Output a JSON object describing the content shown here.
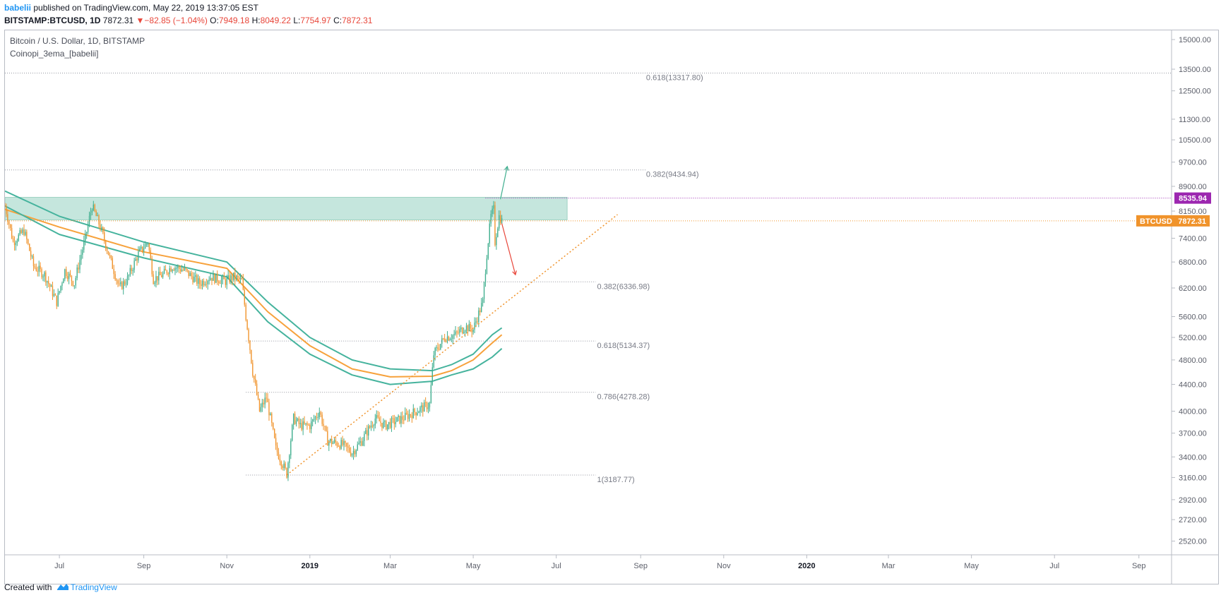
{
  "header": {
    "author": "babelii",
    "published_text": " published on TradingView.com, May 22, 2019 13:37:05 EST",
    "symbol": "BITSTAMP:BTCUSD, 1D",
    "last": "7872.31",
    "change": "−82.85 (−1.04%)",
    "open_label": "O:",
    "open_value": "7949.18",
    "high_label": "H:",
    "high_value": "8049.22",
    "low_label": "L:",
    "low_value": "7754.97",
    "close_label": "C:",
    "close_value": "7872.31"
  },
  "legend": {
    "title": "Bitcoin / U.S. Dollar, 1D, BITSTAMP",
    "indicator": "Coinopi_3ema_[babelii]"
  },
  "footer": {
    "created_with": "Created with",
    "brand": "TradingView"
  },
  "colors": {
    "up_candle": "#3fae8e",
    "down_candle": "#f0932b",
    "ema_teal": "#45b39d",
    "ema_orange": "#f7a23c",
    "zone_fill": "#b2ddd1",
    "purple": "#9c27b0",
    "badge_orange": "#f0932b",
    "up_arrow": "#3fae8e",
    "down_arrow": "#e8463a"
  },
  "chart_data": {
    "type": "candlestick",
    "title": "Bitcoin / U.S. Dollar, 1D, BITSTAMP",
    "y_scale": "log",
    "ylim": [
      2400,
      15500
    ],
    "y_ticks": [
      2520,
      2720,
      2920,
      3160,
      3400,
      3700,
      4000,
      4400,
      4800,
      5200,
      5600,
      6200,
      6800,
      7400,
      8150,
      8900,
      9700,
      10500,
      11300,
      12500,
      13500,
      15000
    ],
    "y_tick_labels": [
      "2520.00",
      "2720.00",
      "2920.00",
      "3160.00",
      "3400.00",
      "3700.00",
      "4000.00",
      "4400.00",
      "4800.00",
      "5200.00",
      "5600.00",
      "6200.00",
      "6800.00",
      "7400.00",
      "8150.00",
      "8900.00",
      "9700.00",
      "10500.00",
      "11300.00",
      "12500.00",
      "13500.00",
      "15000.00"
    ],
    "x_domain": [
      "2018-05-22",
      "2020-09-25"
    ],
    "x_ticks": [
      {
        "date": "2018-07-01",
        "label": "Jul",
        "bold": false
      },
      {
        "date": "2018-09-01",
        "label": "Sep",
        "bold": false
      },
      {
        "date": "2018-11-01",
        "label": "Nov",
        "bold": false
      },
      {
        "date": "2019-01-01",
        "label": "2019",
        "bold": true
      },
      {
        "date": "2019-03-01",
        "label": "Mar",
        "bold": false
      },
      {
        "date": "2019-05-01",
        "label": "May",
        "bold": false
      },
      {
        "date": "2019-07-01",
        "label": "Jul",
        "bold": false
      },
      {
        "date": "2019-09-01",
        "label": "Sep",
        "bold": false
      },
      {
        "date": "2019-11-01",
        "label": "Nov",
        "bold": false
      },
      {
        "date": "2020-01-01",
        "label": "2020",
        "bold": true
      },
      {
        "date": "2020-03-01",
        "label": "Mar",
        "bold": false
      },
      {
        "date": "2020-05-01",
        "label": "May",
        "bold": false
      },
      {
        "date": "2020-07-01",
        "label": "Jul",
        "bold": false
      },
      {
        "date": "2020-09-01",
        "label": "Sep",
        "bold": false
      }
    ],
    "price_path": [
      [
        "2018-05-22",
        8300
      ],
      [
        "2018-05-28",
        7300
      ],
      [
        "2018-06-05",
        7600
      ],
      [
        "2018-06-12",
        6700
      ],
      [
        "2018-06-20",
        6500
      ],
      [
        "2018-06-29",
        5900
      ],
      [
        "2018-07-05",
        6600
      ],
      [
        "2018-07-12",
        6300
      ],
      [
        "2018-07-20",
        7400
      ],
      [
        "2018-07-25",
        8300
      ],
      [
        "2018-07-31",
        7700
      ],
      [
        "2018-08-07",
        6900
      ],
      [
        "2018-08-14",
        6200
      ],
      [
        "2018-08-20",
        6400
      ],
      [
        "2018-08-28",
        7000
      ],
      [
        "2018-09-04",
        7300
      ],
      [
        "2018-09-08",
        6400
      ],
      [
        "2018-09-15",
        6500
      ],
      [
        "2018-09-22",
        6700
      ],
      [
        "2018-10-01",
        6600
      ],
      [
        "2018-10-12",
        6300
      ],
      [
        "2018-10-20",
        6450
      ],
      [
        "2018-10-31",
        6350
      ],
      [
        "2018-11-06",
        6450
      ],
      [
        "2018-11-12",
        6350
      ],
      [
        "2018-11-15",
        5600
      ],
      [
        "2018-11-20",
        4600
      ],
      [
        "2018-11-25",
        4000
      ],
      [
        "2018-11-30",
        4200
      ],
      [
        "2018-12-07",
        3500
      ],
      [
        "2018-12-15",
        3200
      ],
      [
        "2018-12-20",
        3900
      ],
      [
        "2018-12-25",
        3800
      ],
      [
        "2019-01-01",
        3800
      ],
      [
        "2019-01-08",
        4000
      ],
      [
        "2019-01-14",
        3600
      ],
      [
        "2019-01-25",
        3550
      ],
      [
        "2019-02-01",
        3450
      ],
      [
        "2019-02-08",
        3600
      ],
      [
        "2019-02-18",
        3900
      ],
      [
        "2019-02-25",
        3800
      ],
      [
        "2019-03-10",
        3900
      ],
      [
        "2019-03-20",
        4000
      ],
      [
        "2019-03-30",
        4100
      ],
      [
        "2019-04-02",
        4900
      ],
      [
        "2019-04-10",
        5200
      ],
      [
        "2019-04-18",
        5250
      ],
      [
        "2019-04-25",
        5400
      ],
      [
        "2019-05-01",
        5350
      ],
      [
        "2019-05-08",
        5900
      ],
      [
        "2019-05-11",
        7000
      ],
      [
        "2019-05-14",
        8000
      ],
      [
        "2019-05-16",
        8200
      ],
      [
        "2019-05-17",
        7300
      ],
      [
        "2019-05-20",
        8000
      ],
      [
        "2019-05-22",
        7872.31
      ]
    ],
    "ema_teal_1": [
      [
        "2018-05-22",
        8750
      ],
      [
        "2018-07-01",
        8000
      ],
      [
        "2018-09-01",
        7300
      ],
      [
        "2018-11-01",
        6800
      ],
      [
        "2018-12-01",
        5900
      ],
      [
        "2019-01-01",
        5200
      ],
      [
        "2019-02-01",
        4800
      ],
      [
        "2019-03-01",
        4650
      ],
      [
        "2019-04-01",
        4620
      ],
      [
        "2019-04-15",
        4720
      ],
      [
        "2019-05-01",
        4900
      ],
      [
        "2019-05-15",
        5250
      ],
      [
        "2019-05-22",
        5380
      ]
    ],
    "ema_orange_1": [
      [
        "2018-05-22",
        8200
      ],
      [
        "2018-07-01",
        7700
      ],
      [
        "2018-09-01",
        7050
      ],
      [
        "2018-11-01",
        6650
      ],
      [
        "2018-12-01",
        5700
      ],
      [
        "2019-01-01",
        5050
      ],
      [
        "2019-02-01",
        4650
      ],
      [
        "2019-03-01",
        4520
      ],
      [
        "2019-04-01",
        4530
      ],
      [
        "2019-04-15",
        4620
      ],
      [
        "2019-05-01",
        4800
      ],
      [
        "2019-05-15",
        5100
      ],
      [
        "2019-05-22",
        5250
      ]
    ],
    "ema_teal_2": [
      [
        "2018-05-22",
        8300
      ],
      [
        "2018-07-01",
        7500
      ],
      [
        "2018-09-01",
        6900
      ],
      [
        "2018-11-01",
        6450
      ],
      [
        "2018-12-01",
        5500
      ],
      [
        "2019-01-01",
        4900
      ],
      [
        "2019-02-01",
        4550
      ],
      [
        "2019-03-01",
        4400
      ],
      [
        "2019-04-01",
        4450
      ],
      [
        "2019-04-15",
        4550
      ],
      [
        "2019-05-01",
        4650
      ],
      [
        "2019-05-15",
        4850
      ],
      [
        "2019-05-22",
        5000
      ]
    ],
    "zone": {
      "x0": "2018-05-22",
      "x1": "2019-07-09",
      "y0": 7900,
      "y1": 8560
    },
    "trendline": [
      [
        "2018-12-15",
        3187.77
      ],
      [
        "2019-08-15",
        8050
      ]
    ],
    "price_lines": [
      {
        "label": "8535.94",
        "value": 8535.94,
        "color": "#9c27b0",
        "from": "2019-05-10"
      },
      {
        "label": "BTCUSD",
        "value": 7872.31,
        "color": "#f0932b",
        "from": "2018-05-22"
      }
    ],
    "fib_upper": [
      {
        "label": "0.618(13317.80)",
        "value": 13317.8,
        "from": "2018-05-22",
        "to": "2020-09-25",
        "label_at": "2019-09-05"
      },
      {
        "label": "0.382(9434.94)",
        "value": 9434.94,
        "from": "2018-05-22",
        "to": "2019-09-05",
        "label_at": "2019-09-05"
      }
    ],
    "fib_lower": [
      {
        "label": "0.382(6336.98)",
        "value": 6336.98,
        "from": "2018-11-15",
        "to": "2019-07-30",
        "label_at": "2019-07-31"
      },
      {
        "label": "0.618(5134.37)",
        "value": 5134.37,
        "from": "2018-11-15",
        "to": "2019-07-30",
        "label_at": "2019-07-31"
      },
      {
        "label": "0.786(4278.28)",
        "value": 4278.28,
        "from": "2018-11-15",
        "to": "2019-07-30",
        "label_at": "2019-07-31"
      },
      {
        "label": "1(3187.77)",
        "value": 3187.77,
        "from": "2018-11-15",
        "to": "2019-07-30",
        "label_at": "2019-07-31"
      }
    ],
    "arrows": [
      {
        "name": "up",
        "from": [
          "2019-05-21",
          8500
        ],
        "to": [
          "2019-05-26",
          9550
        ],
        "color": "#3fae8e"
      },
      {
        "name": "down",
        "from": [
          "2019-05-22",
          7800
        ],
        "to": [
          "2019-06-01",
          6500
        ],
        "color": "#e8463a"
      }
    ]
  }
}
